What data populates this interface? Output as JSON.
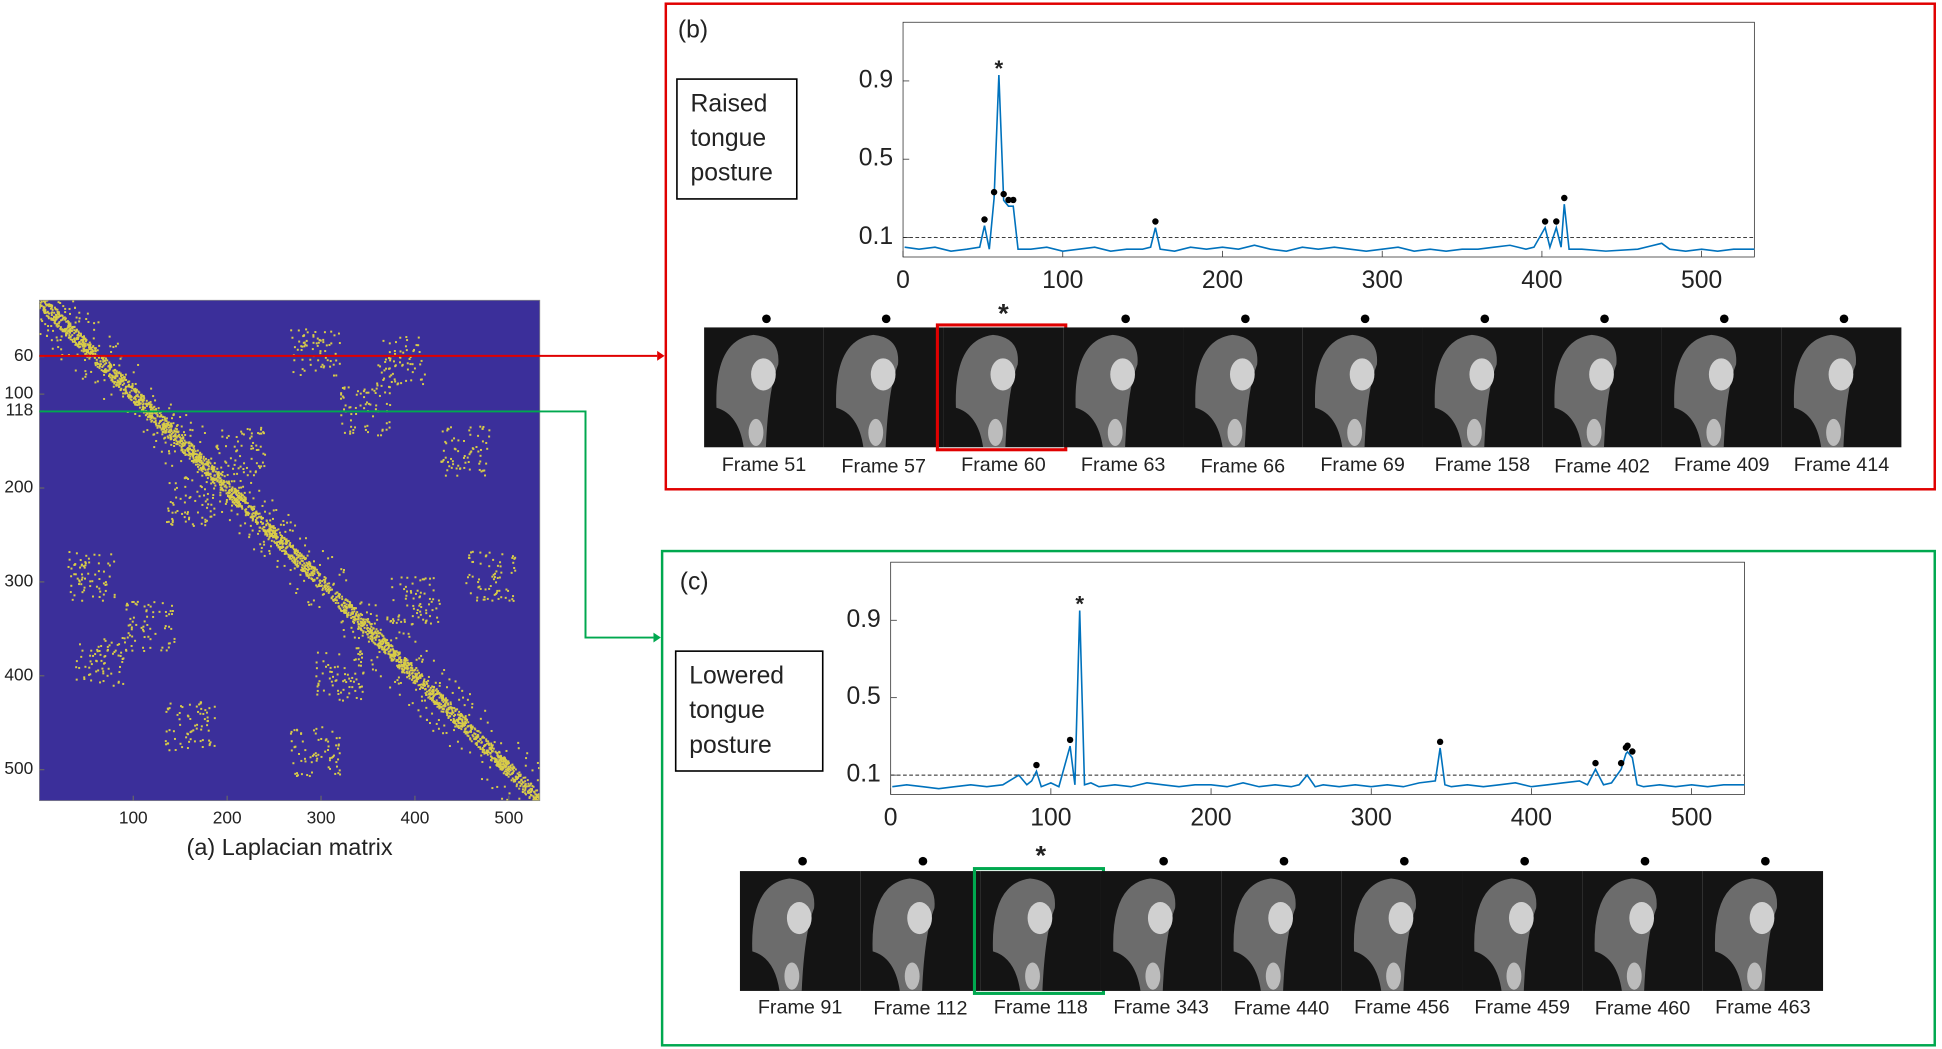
{
  "chart_data": [
    {
      "type": "heatmap",
      "caption": "(a) Laplacian matrix",
      "xlim": [
        0,
        533
      ],
      "ylim": [
        0,
        533
      ],
      "xticks": [
        100,
        200,
        300,
        400,
        500
      ],
      "yticks": [
        60,
        100,
        118,
        200,
        300,
        400,
        500
      ]
    },
    {
      "type": "line",
      "panel": "(b)",
      "annotation": [
        "Raised",
        "tongue",
        "posture"
      ],
      "frame_color": "#e00000",
      "x": [
        1,
        10,
        20,
        30,
        40,
        48,
        51,
        54,
        57,
        60,
        63,
        66,
        69,
        72,
        80,
        90,
        100,
        110,
        120,
        130,
        140,
        150,
        155,
        158,
        161,
        170,
        180,
        190,
        200,
        210,
        220,
        230,
        240,
        250,
        260,
        270,
        280,
        290,
        300,
        310,
        320,
        330,
        340,
        350,
        360,
        370,
        380,
        390,
        395,
        402,
        405,
        409,
        412,
        414,
        417,
        425,
        440,
        460,
        475,
        480,
        490,
        500,
        510,
        520,
        533
      ],
      "series": [
        {
          "color": "#0072bd",
          "values": [
            0.05,
            0.04,
            0.05,
            0.03,
            0.04,
            0.05,
            0.16,
            0.04,
            0.3,
            0.93,
            0.29,
            0.26,
            0.26,
            0.04,
            0.04,
            0.05,
            0.03,
            0.04,
            0.05,
            0.03,
            0.04,
            0.04,
            0.05,
            0.15,
            0.04,
            0.03,
            0.05,
            0.04,
            0.05,
            0.04,
            0.06,
            0.04,
            0.03,
            0.05,
            0.04,
            0.05,
            0.04,
            0.03,
            0.04,
            0.05,
            0.03,
            0.04,
            0.03,
            0.04,
            0.04,
            0.05,
            0.06,
            0.04,
            0.05,
            0.15,
            0.05,
            0.15,
            0.05,
            0.27,
            0.04,
            0.04,
            0.03,
            0.04,
            0.07,
            0.04,
            0.03,
            0.04,
            0.03,
            0.04,
            0.04
          ]
        }
      ],
      "markers": {
        "x": [
          51,
          57,
          60,
          63,
          66,
          69,
          158,
          402,
          409,
          414
        ],
        "values": [
          0.16,
          0.3,
          0.93,
          0.29,
          0.26,
          0.26,
          0.15,
          0.15,
          0.15,
          0.27
        ]
      },
      "highlight_x": 60,
      "highlight_symbol": "*",
      "threshold": 0.1,
      "xlim": [
        0,
        533
      ],
      "ylim": [
        0,
        1.2
      ],
      "xticks": [
        0,
        100,
        200,
        300,
        400,
        500
      ],
      "yticks": [
        0.1,
        0.5,
        0.9
      ],
      "frames": [
        "Frame 51",
        "Frame 57",
        "Frame 60",
        "Frame 63",
        "Frame 66",
        "Frame 69",
        "Frame 158",
        "Frame 402",
        "Frame 409",
        "Frame 414"
      ],
      "highlight_frame": "Frame 60"
    },
    {
      "type": "line",
      "panel": "(c)",
      "annotation": [
        "Lowered",
        "tongue",
        "posture"
      ],
      "frame_color": "#00a84f",
      "x": [
        1,
        10,
        20,
        30,
        40,
        50,
        60,
        70,
        80,
        85,
        88,
        91,
        94,
        100,
        105,
        112,
        115,
        118,
        121,
        125,
        130,
        140,
        150,
        160,
        170,
        180,
        190,
        200,
        210,
        220,
        230,
        240,
        250,
        255,
        260,
        265,
        270,
        280,
        290,
        300,
        310,
        320,
        330,
        340,
        343,
        346,
        350,
        360,
        370,
        380,
        390,
        400,
        410,
        420,
        430,
        435,
        440,
        445,
        450,
        456,
        459,
        460,
        463,
        466,
        470,
        480,
        490,
        500,
        510,
        520,
        533
      ],
      "series": [
        {
          "color": "#0072bd",
          "values": [
            0.04,
            0.05,
            0.04,
            0.03,
            0.04,
            0.05,
            0.04,
            0.05,
            0.1,
            0.05,
            0.07,
            0.12,
            0.04,
            0.06,
            0.04,
            0.25,
            0.05,
            0.95,
            0.05,
            0.06,
            0.04,
            0.05,
            0.04,
            0.06,
            0.05,
            0.04,
            0.05,
            0.05,
            0.04,
            0.06,
            0.04,
            0.05,
            0.04,
            0.05,
            0.1,
            0.04,
            0.05,
            0.04,
            0.05,
            0.04,
            0.05,
            0.04,
            0.06,
            0.07,
            0.24,
            0.05,
            0.04,
            0.05,
            0.04,
            0.05,
            0.06,
            0.04,
            0.05,
            0.06,
            0.07,
            0.05,
            0.13,
            0.05,
            0.06,
            0.13,
            0.21,
            0.22,
            0.19,
            0.05,
            0.04,
            0.05,
            0.04,
            0.05,
            0.04,
            0.05,
            0.05
          ]
        }
      ],
      "markers": {
        "x": [
          91,
          112,
          118,
          343,
          440,
          456,
          459,
          460,
          463
        ],
        "values": [
          0.12,
          0.25,
          0.95,
          0.24,
          0.13,
          0.13,
          0.21,
          0.22,
          0.19
        ]
      },
      "highlight_x": 118,
      "highlight_symbol": "*",
      "threshold": 0.1,
      "xlim": [
        0,
        533
      ],
      "ylim": [
        0,
        1.2
      ],
      "xticks": [
        0,
        100,
        200,
        300,
        400,
        500
      ],
      "yticks": [
        0.1,
        0.5,
        0.9
      ],
      "frames": [
        "Frame 91",
        "Frame 112",
        "Frame 118",
        "Frame 343",
        "Frame 440",
        "Frame 456",
        "Frame 459",
        "Frame 460",
        "Frame 463"
      ],
      "highlight_frame": "Frame 118"
    }
  ]
}
